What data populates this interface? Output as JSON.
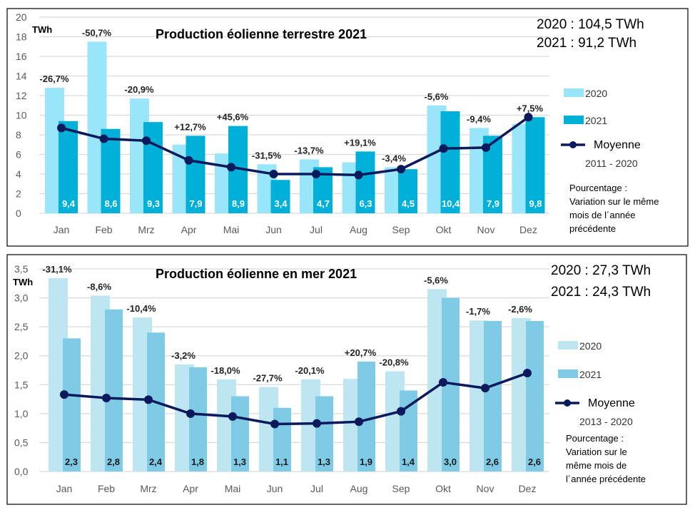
{
  "chart_data": [
    {
      "type": "bar",
      "title": "Production éolienne terrestre 2021",
      "ylabel": "TWh",
      "ylim": [
        0,
        20
      ],
      "yticks": [
        "0",
        "2",
        "4",
        "6",
        "8",
        "10",
        "12",
        "14",
        "16",
        "18",
        "20"
      ],
      "grid": true,
      "legend_position": "right",
      "categories": [
        "Jan",
        "Feb",
        "Mrz",
        "Apr",
        "Mai",
        "Jun",
        "Jul",
        "Aug",
        "Sep",
        "Okt",
        "Nov",
        "Dez"
      ],
      "series": [
        {
          "name": "2020",
          "type": "bar",
          "color": "#99e6fa",
          "values": [
            12.8,
            17.5,
            11.7,
            7.0,
            6.1,
            5.0,
            5.5,
            5.2,
            4.7,
            11.0,
            8.7,
            9.1
          ]
        },
        {
          "name": "2021",
          "type": "bar",
          "color": "#00b0d8",
          "values": [
            9.4,
            8.6,
            9.3,
            7.9,
            8.9,
            3.4,
            4.7,
            6.3,
            4.5,
            10.4,
            7.9,
            9.8
          ]
        },
        {
          "name": "Moyenne",
          "subtitle": "2011 - 2020",
          "type": "line",
          "color": "#0a1a5c",
          "values": [
            8.7,
            7.6,
            7.4,
            5.4,
            4.7,
            4.0,
            4.0,
            3.9,
            4.5,
            6.6,
            6.7,
            9.8
          ]
        }
      ],
      "data_labels_2021": [
        "9,4",
        "8,6",
        "9,3",
        "7,9",
        "8,9",
        "3,4",
        "4,7",
        "6,3",
        "4,5",
        "10,4",
        "7,9",
        "9,8"
      ],
      "data_label_color": "#ffffff",
      "variation_labels": [
        "-26,7%",
        "-50,7%",
        "-20,9%",
        "+12,7%",
        "+45,6%",
        "-31,5%",
        "-13,7%",
        "+19,1%",
        "-3,4%",
        "-5,6%",
        "-9,4%",
        "+7,5%"
      ],
      "totals": [
        "2020 :  104,5 TWh",
        "2021 :    91,2 TWh"
      ],
      "note": [
        "Pourcentage :",
        "Variation sur le même",
        "mois de l´année",
        "précédente"
      ]
    },
    {
      "type": "bar",
      "title": "Production éolienne en mer 2021",
      "ylabel": "TWh",
      "ylim": [
        0,
        3.5
      ],
      "yticks": [
        "0,0",
        "0,5",
        "1,0",
        "1,5",
        "2,0",
        "2,5",
        "3,0",
        "3,5"
      ],
      "grid": true,
      "legend_position": "right",
      "categories": [
        "Jan",
        "Feb",
        "Mrz",
        "Apr",
        "Mai",
        "Jun",
        "Jul",
        "Aug",
        "Sep",
        "Okt",
        "Nov",
        "Dez"
      ],
      "series": [
        {
          "name": "2020",
          "type": "bar",
          "color": "#bde5f2",
          "values": [
            3.34,
            3.04,
            2.66,
            1.85,
            1.59,
            1.46,
            1.59,
            1.6,
            1.73,
            3.15,
            2.61,
            2.65
          ]
        },
        {
          "name": "2021",
          "type": "bar",
          "color": "#7fcbe6",
          "values": [
            2.3,
            2.8,
            2.4,
            1.8,
            1.3,
            1.1,
            1.3,
            1.9,
            1.4,
            3.0,
            2.6,
            2.6
          ]
        },
        {
          "name": "Moyenne",
          "subtitle": "2013 - 2020",
          "type": "line",
          "color": "#0a1a5c",
          "values": [
            1.33,
            1.27,
            1.24,
            1.0,
            0.95,
            0.82,
            0.83,
            0.86,
            1.04,
            1.54,
            1.44,
            1.7
          ]
        }
      ],
      "data_labels_2021": [
        "2,3",
        "2,8",
        "2,4",
        "1,8",
        "1,3",
        "1,1",
        "1,3",
        "1,9",
        "1,4",
        "3,0",
        "2,6",
        "2,6"
      ],
      "data_label_color": "#1a1a1a",
      "variation_labels": [
        "-31,1%",
        "-8,6%",
        "-10,4%",
        "-3,2%",
        "-18,0%",
        "-27,7%",
        "-20,1%",
        "+20,7%",
        "-20,8%",
        "-5,6%",
        "-1,7%",
        "-2,6%"
      ],
      "totals": [
        "2020 :  27,3 TWh",
        "2021 :  24,3 TWh"
      ],
      "note": [
        "Pourcentage :",
        "Variation sur le",
        "même mois de",
        "l´année précédente"
      ]
    }
  ]
}
